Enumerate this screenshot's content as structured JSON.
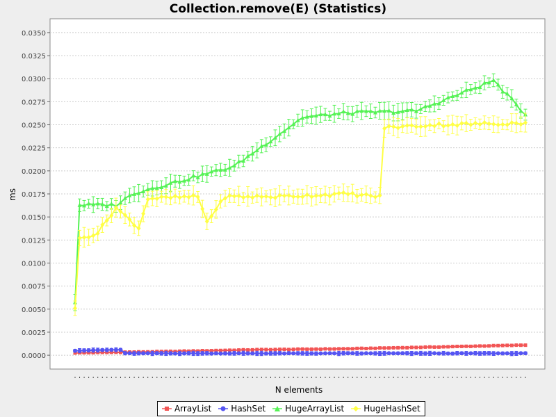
{
  "chart_data": {
    "type": "line",
    "title": "Collection.remove(E) (Statistics)",
    "xlabel": "N elements",
    "ylabel": "ms",
    "ylim": [
      -0.0015,
      0.0365
    ],
    "yticks": [
      "0.0000",
      "0.0025",
      "0.0050",
      "0.0075",
      "0.0100",
      "0.0125",
      "0.0150",
      "0.0175",
      "0.0200",
      "0.0225",
      "0.0250",
      "0.0275",
      "0.0300",
      "0.0325",
      "0.0350"
    ],
    "grid": true,
    "legend_position": "bottom",
    "error_bars": true,
    "x_count": 100,
    "series": [
      {
        "name": "ArrayList",
        "color": "#f25555",
        "marker": "square",
        "segments": [
          [
            0,
            0.00025
          ],
          [
            20,
            0.0004
          ],
          [
            40,
            0.0006
          ],
          [
            60,
            0.0007
          ],
          [
            80,
            0.0009
          ],
          [
            99,
            0.0011
          ]
        ],
        "err": 0.0001
      },
      {
        "name": "HashSet",
        "color": "#5555f2",
        "marker": "circle",
        "segments": [
          [
            0,
            0.0005
          ],
          [
            10,
            0.0006
          ],
          [
            11,
            0.0002
          ],
          [
            99,
            0.0002
          ]
        ],
        "err": 0.0002
      },
      {
        "name": "HugeArrayList",
        "color": "#55f255",
        "marker": "triangle",
        "segments": [
          [
            0,
            0.0058
          ],
          [
            1,
            0.0163
          ],
          [
            9,
            0.0163
          ],
          [
            13,
            0.0176
          ],
          [
            26,
            0.0193
          ],
          [
            35,
            0.0205
          ],
          [
            50,
            0.0258
          ],
          [
            60,
            0.0263
          ],
          [
            75,
            0.0265
          ],
          [
            92,
            0.0298
          ],
          [
            99,
            0.0261
          ]
        ],
        "err": 0.0008
      },
      {
        "name": "HugeHashSet",
        "color": "#ffff44",
        "marker": "diamond",
        "segments": [
          [
            0,
            0.0052
          ],
          [
            1,
            0.0126
          ],
          [
            5,
            0.0133
          ],
          [
            9,
            0.016
          ],
          [
            14,
            0.0138
          ],
          [
            16,
            0.017
          ],
          [
            27,
            0.0172
          ],
          [
            29,
            0.0145
          ],
          [
            33,
            0.0172
          ],
          [
            44,
            0.0172
          ],
          [
            60,
            0.0175
          ],
          [
            67,
            0.0172
          ],
          [
            68,
            0.0247
          ],
          [
            80,
            0.025
          ],
          [
            99,
            0.0252
          ]
        ],
        "err": 0.0009
      }
    ]
  }
}
